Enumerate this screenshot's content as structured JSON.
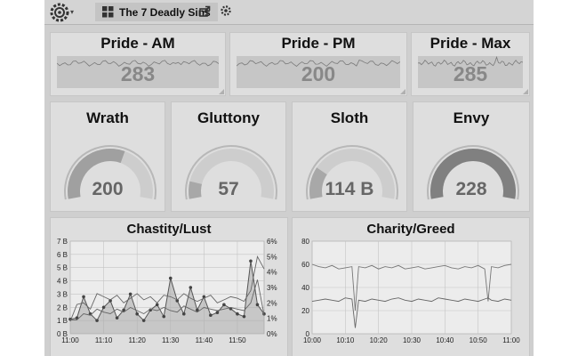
{
  "header": {
    "dashboard_title": "The 7 Deadly Sins",
    "logo_icon": "grafana-gear-icon",
    "share_icon": "share-icon",
    "settings_icon": "gear-icon"
  },
  "stats": [
    {
      "title": "Pride - AM",
      "value": "283"
    },
    {
      "title": "Pride - PM",
      "value": "200"
    },
    {
      "title": "Pride - Max",
      "value": "285"
    }
  ],
  "gauges": [
    {
      "title": "Wrath",
      "value": "200",
      "fill": 0.6,
      "shade": "#a0a0a0"
    },
    {
      "title": "Gluttony",
      "value": "57",
      "fill": 0.12,
      "shade": "#a8a8a8"
    },
    {
      "title": "Sloth",
      "value": "114 B",
      "fill": 0.22,
      "shade": "#a8a8a8"
    },
    {
      "title": "Envy",
      "value": "228",
      "fill": 1.0,
      "shade": "#808080"
    }
  ],
  "chart_data": [
    {
      "type": "line",
      "title": "Chastity/Lust",
      "x_ticks": [
        "11:00",
        "11:10",
        "11:20",
        "11:30",
        "11:40",
        "11:50"
      ],
      "x_range": [
        0,
        58
      ],
      "ylim": [
        0,
        7
      ],
      "y_ticks": [
        "0 B",
        "1 B",
        "2 B",
        "3 B",
        "4 B",
        "5 B",
        "6 B",
        "7 B"
      ],
      "y2lim": [
        0,
        6
      ],
      "y2_ticks": [
        "0%",
        "1%",
        "2%",
        "3%",
        "4%",
        "5%",
        "6%"
      ],
      "series": [
        {
          "axis": "left",
          "style": "bars-points",
          "x": [
            0,
            2,
            4,
            6,
            8,
            10,
            12,
            14,
            16,
            18,
            20,
            22,
            24,
            26,
            28,
            30,
            32,
            34,
            36,
            38,
            40,
            42,
            44,
            46,
            48,
            50,
            52,
            54,
            56,
            58
          ],
          "values": [
            1.1,
            1.2,
            2.8,
            1.5,
            1.0,
            2.0,
            2.5,
            1.2,
            1.8,
            3.0,
            1.5,
            1.0,
            1.8,
            2.2,
            1.3,
            4.2,
            2.5,
            1.5,
            3.5,
            1.8,
            2.8,
            1.4,
            1.6,
            2.2,
            1.9,
            1.5,
            1.3,
            5.5,
            2.2,
            1.5
          ]
        },
        {
          "axis": "right",
          "style": "line",
          "x": [
            0,
            2,
            4,
            6,
            8,
            10,
            12,
            14,
            16,
            18,
            20,
            22,
            24,
            26,
            28,
            30,
            32,
            34,
            36,
            38,
            40,
            42,
            44,
            46,
            48,
            50,
            52,
            54,
            56,
            58
          ],
          "values": [
            0.8,
            1.9,
            2.0,
            1.6,
            2.6,
            2.4,
            2.2,
            2.5,
            2.0,
            2.3,
            2.6,
            2.2,
            2.4,
            2.0,
            2.5,
            2.4,
            2.2,
            2.6,
            2.3,
            2.1,
            2.3,
            2.5,
            2.0,
            2.2,
            2.4,
            2.3,
            2.1,
            2.8,
            5.0,
            4.2
          ]
        },
        {
          "axis": "right",
          "style": "line",
          "x": [
            0,
            2,
            4,
            6,
            8,
            10,
            12,
            14,
            16,
            18,
            20,
            22,
            24,
            26,
            28,
            30,
            32,
            34,
            36,
            38,
            40,
            42,
            44,
            46,
            48,
            50,
            52,
            54,
            56,
            58
          ],
          "values": [
            0.9,
            0.9,
            1.3,
            1.2,
            1.6,
            1.4,
            1.3,
            1.6,
            1.4,
            1.7,
            1.5,
            1.3,
            1.6,
            1.5,
            1.7,
            1.5,
            1.4,
            1.8,
            1.6,
            1.4,
            1.7,
            1.6,
            1.5,
            1.6,
            1.7,
            1.6,
            1.5,
            2.0,
            3.5,
            1.2
          ]
        }
      ]
    },
    {
      "type": "line",
      "title": "Charity/Greed",
      "x_ticks": [
        "10:00",
        "10:10",
        "10:20",
        "10:30",
        "10:40",
        "10:50",
        "11:00"
      ],
      "x_range": [
        0,
        60
      ],
      "ylim": [
        0,
        80
      ],
      "y_ticks": [
        "0",
        "20",
        "40",
        "60",
        "80"
      ],
      "series": [
        {
          "style": "line",
          "x": [
            0,
            2,
            4,
            6,
            8,
            10,
            12,
            13,
            14,
            16,
            18,
            20,
            22,
            24,
            26,
            28,
            30,
            32,
            34,
            36,
            38,
            40,
            42,
            44,
            46,
            48,
            50,
            52,
            53,
            54,
            56,
            58,
            60
          ],
          "values": [
            60,
            58,
            57,
            59,
            56,
            57,
            58,
            20,
            58,
            57,
            59,
            56,
            58,
            57,
            59,
            56,
            57,
            58,
            56,
            57,
            58,
            59,
            57,
            56,
            58,
            57,
            59,
            56,
            28,
            58,
            57,
            59,
            60
          ]
        },
        {
          "style": "line",
          "x": [
            0,
            2,
            4,
            6,
            8,
            10,
            12,
            13,
            14,
            16,
            18,
            20,
            22,
            24,
            26,
            28,
            30,
            32,
            34,
            36,
            38,
            40,
            42,
            44,
            46,
            48,
            50,
            52,
            53,
            54,
            56,
            58,
            60
          ],
          "values": [
            28,
            29,
            30,
            29,
            28,
            31,
            30,
            5,
            29,
            28,
            30,
            29,
            28,
            30,
            31,
            29,
            28,
            30,
            29,
            28,
            31,
            30,
            29,
            28,
            30,
            29,
            28,
            30,
            31,
            29,
            28,
            30,
            29
          ]
        }
      ]
    }
  ]
}
